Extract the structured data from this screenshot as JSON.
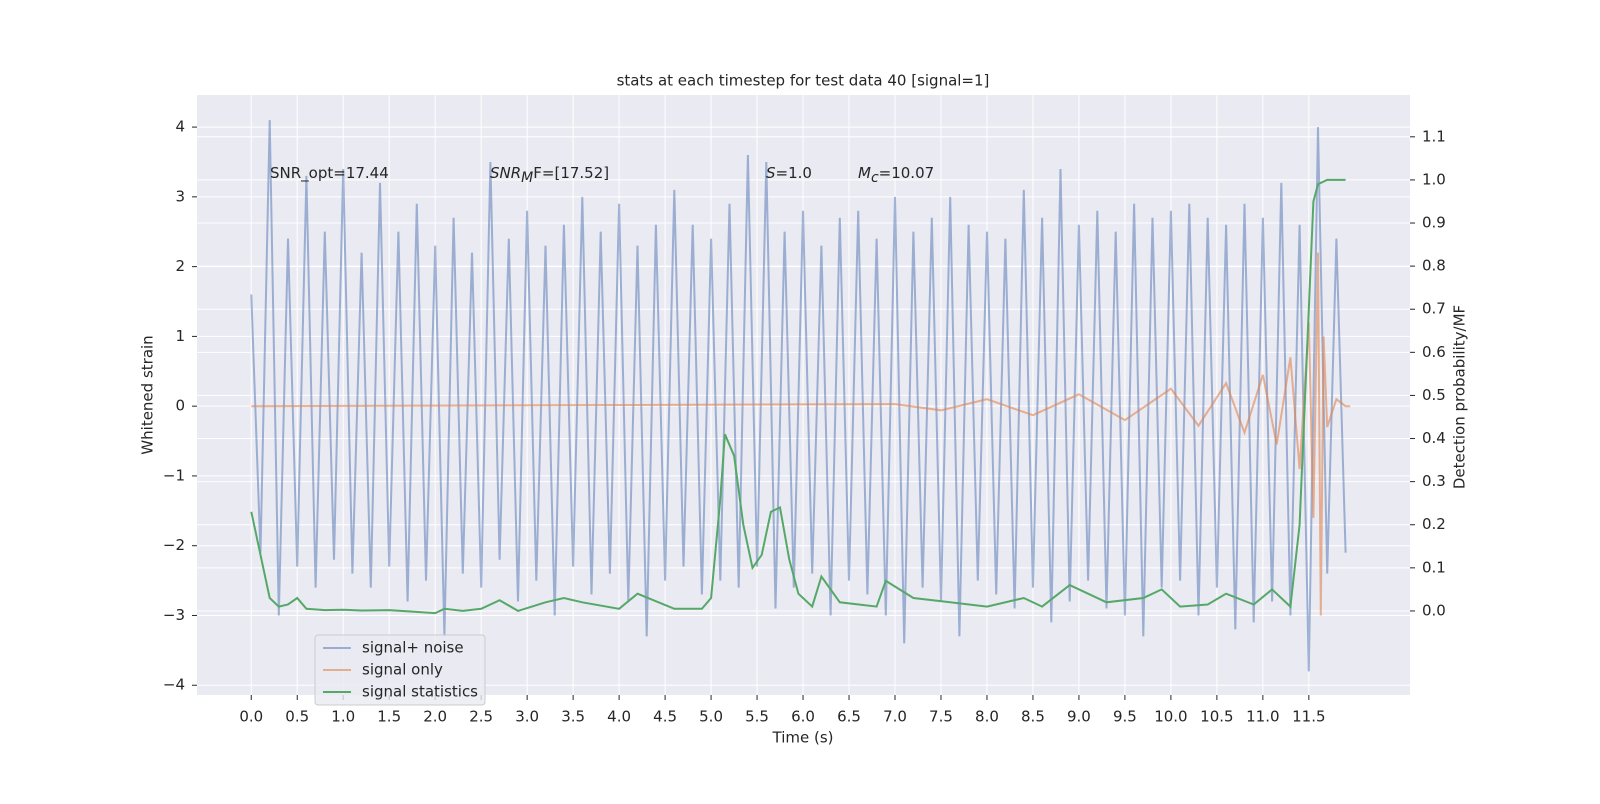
{
  "chart_data": {
    "type": "line",
    "title": "stats at each timestep for test data 40 [signal=1]",
    "x_label": "Time (s)",
    "y_label": "Whitened strain",
    "y2_label": "Detection probability/MF",
    "annotations": [
      {
        "parts": [
          "SNR_opt=17.44"
        ]
      },
      {
        "parts": [
          "SNR",
          "M",
          "F=[17.52]"
        ]
      },
      {
        "parts": [
          "S",
          "=1.0"
        ]
      },
      {
        "parts": [
          "M",
          "c",
          "=10.07"
        ]
      }
    ],
    "xlim": [
      -0.59,
      12.6
    ],
    "ylim": [
      -4.14,
      4.46
    ],
    "y2lim": [
      -0.195,
      1.197
    ],
    "grid": true,
    "legend": "lower left",
    "background": "#eaeaf2",
    "xticks": [
      {
        "value": 0,
        "label": "0.0"
      },
      {
        "value": 0.5,
        "label": "0.5"
      },
      {
        "value": 1,
        "label": "1.0"
      },
      {
        "value": 1.5,
        "label": "1.5"
      },
      {
        "value": 2,
        "label": "2.0"
      },
      {
        "value": 2.5,
        "label": "2.5"
      },
      {
        "value": 3,
        "label": "3.0"
      },
      {
        "value": 3.5,
        "label": "3.5"
      },
      {
        "value": 4,
        "label": "4.0"
      },
      {
        "value": 4.5,
        "label": "4.5"
      },
      {
        "value": 5,
        "label": "5.0"
      },
      {
        "value": 5.5,
        "label": "5.5"
      },
      {
        "value": 6,
        "label": "6.0"
      },
      {
        "value": 6.5,
        "label": "6.5"
      },
      {
        "value": 7,
        "label": "7.0"
      },
      {
        "value": 7.5,
        "label": "7.5"
      },
      {
        "value": 8,
        "label": "8.0"
      },
      {
        "value": 8.5,
        "label": "8.5"
      },
      {
        "value": 9,
        "label": "9.0"
      },
      {
        "value": 9.5,
        "label": "9.5"
      },
      {
        "value": 10,
        "label": "10.0"
      },
      {
        "value": 10.5,
        "label": "10.5"
      },
      {
        "value": 11,
        "label": "11.0"
      },
      {
        "value": 11.5,
        "label": "11.5"
      }
    ],
    "yticks": [
      {
        "value": -4,
        "label": "−4"
      },
      {
        "value": -3,
        "label": "−3"
      },
      {
        "value": -2,
        "label": "−2"
      },
      {
        "value": -1,
        "label": "−1"
      },
      0,
      1,
      2,
      3,
      4
    ],
    "y2ticks": [
      {
        "value": 0,
        "label": "0.0"
      },
      {
        "value": 0.1,
        "label": "0.1"
      },
      {
        "value": 0.2,
        "label": "0.2"
      },
      {
        "value": 0.3,
        "label": "0.3"
      },
      {
        "value": 0.4,
        "label": "0.4"
      },
      {
        "value": 0.5,
        "label": "0.5"
      },
      {
        "value": 0.6,
        "label": "0.6"
      },
      {
        "value": 0.7,
        "label": "0.7"
      },
      {
        "value": 0.8,
        "label": "0.8"
      },
      {
        "value": 0.9,
        "label": "0.9"
      },
      {
        "value": 1,
        "label": "1.0"
      },
      {
        "value": 1.1,
        "label": "1.1"
      }
    ],
    "series": [
      {
        "name": "signal+ noise",
        "color": "#4c72b0",
        "alpha": 0.5,
        "x": [
          0.0,
          0.1,
          0.2,
          0.3,
          0.4,
          0.5,
          0.6,
          0.7,
          0.8,
          0.9,
          1.0,
          1.1,
          1.2,
          1.3,
          1.4,
          1.5,
          1.6,
          1.7,
          1.8,
          1.9,
          2.0,
          2.1,
          2.2,
          2.3,
          2.4,
          2.5,
          2.6,
          2.7,
          2.8,
          2.9,
          3.0,
          3.1,
          3.2,
          3.3,
          3.4,
          3.5,
          3.6,
          3.7,
          3.8,
          3.9,
          4.0,
          4.1,
          4.2,
          4.3,
          4.4,
          4.5,
          4.6,
          4.7,
          4.8,
          4.9,
          5.0,
          5.1,
          5.2,
          5.3,
          5.4,
          5.5,
          5.6,
          5.7,
          5.8,
          5.9,
          6.0,
          6.1,
          6.2,
          6.3,
          6.4,
          6.5,
          6.6,
          6.7,
          6.8,
          6.9,
          7.0,
          7.1,
          7.2,
          7.3,
          7.4,
          7.5,
          7.6,
          7.7,
          7.8,
          7.9,
          8.0,
          8.1,
          8.2,
          8.3,
          8.4,
          8.5,
          8.6,
          8.7,
          8.8,
          8.9,
          9.0,
          9.1,
          9.2,
          9.3,
          9.4,
          9.5,
          9.6,
          9.7,
          9.8,
          9.9,
          10.0,
          10.1,
          10.2,
          10.3,
          10.4,
          10.5,
          10.6,
          10.7,
          10.8,
          10.9,
          11.0,
          11.1,
          11.2,
          11.3,
          11.4,
          11.5,
          11.6,
          11.7,
          11.8,
          11.9
        ],
        "values": [
          1.6,
          -2.1,
          4.1,
          -3.0,
          2.4,
          -2.3,
          3.3,
          -2.6,
          2.5,
          -2.2,
          3.4,
          -2.4,
          2.2,
          -2.6,
          3.2,
          -2.3,
          2.5,
          -2.8,
          2.9,
          -2.5,
          2.3,
          -3.3,
          2.7,
          -2.4,
          2.2,
          -2.6,
          3.5,
          -2.2,
          2.4,
          -2.8,
          2.8,
          -2.5,
          2.3,
          -3.0,
          2.6,
          -2.3,
          3.0,
          -2.7,
          2.5,
          -2.4,
          2.9,
          -2.8,
          2.3,
          -3.3,
          2.6,
          -2.5,
          3.1,
          -2.3,
          2.6,
          -2.7,
          2.4,
          -2.5,
          2.9,
          -2.6,
          3.6,
          -2.3,
          3.5,
          -2.9,
          2.5,
          -2.6,
          2.8,
          -2.4,
          2.3,
          -3.0,
          2.7,
          -2.5,
          2.8,
          -2.7,
          2.4,
          -3.0,
          3.0,
          -3.4,
          2.5,
          -2.6,
          2.7,
          -2.8,
          3.0,
          -3.3,
          2.6,
          -2.5,
          2.5,
          -2.7,
          2.4,
          -2.9,
          3.1,
          -2.6,
          2.7,
          -3.1,
          3.4,
          -2.8,
          2.6,
          -2.5,
          2.8,
          -2.9,
          2.5,
          -3.0,
          2.9,
          -3.3,
          2.7,
          -2.6,
          2.8,
          -2.5,
          2.9,
          -3.0,
          2.7,
          -2.6,
          2.6,
          -3.2,
          2.9,
          -3.1,
          2.7,
          -2.8,
          3.2,
          -3.0,
          2.6,
          -3.8,
          4.0,
          -2.4,
          2.4,
          -2.1
        ]
      },
      {
        "name": "signal only",
        "color": "#dd8452",
        "alpha": 0.6,
        "x": [
          0.0,
          7.0,
          7.5,
          8.0,
          8.5,
          9.0,
          9.5,
          10.0,
          10.3,
          10.6,
          10.8,
          11.0,
          11.15,
          11.3,
          11.4,
          11.5,
          11.55,
          11.6,
          11.63,
          11.66,
          11.7,
          11.8,
          11.9,
          11.95
        ],
        "values": [
          0,
          0.03,
          -0.06,
          0.1,
          -0.13,
          0.17,
          -0.2,
          0.25,
          -0.28,
          0.33,
          -0.38,
          0.45,
          -0.55,
          0.7,
          -0.9,
          1.2,
          -1.6,
          2.2,
          -3.0,
          1.0,
          -0.3,
          0.1,
          0,
          0
        ]
      },
      {
        "name": "signal statistics",
        "color": "#55a868",
        "alpha": 1,
        "axis": "y2",
        "x": [
          0.0,
          0.1,
          0.2,
          0.3,
          0.4,
          0.5,
          0.6,
          0.8,
          1.0,
          1.2,
          1.5,
          2.0,
          2.1,
          2.3,
          2.5,
          2.7,
          2.9,
          3.2,
          3.4,
          3.6,
          4.0,
          4.2,
          4.6,
          4.9,
          5.0,
          5.1,
          5.15,
          5.25,
          5.35,
          5.45,
          5.55,
          5.65,
          5.75,
          5.85,
          5.95,
          6.1,
          6.2,
          6.4,
          6.8,
          6.9,
          7.2,
          7.6,
          8.0,
          8.4,
          8.6,
          8.9,
          9.3,
          9.7,
          9.9,
          10.1,
          10.4,
          10.6,
          10.9,
          11.1,
          11.3,
          11.4,
          11.5,
          11.55,
          11.6,
          11.7,
          11.9
        ],
        "values": [
          0.23,
          0.13,
          0.03,
          0.01,
          0.015,
          0.03,
          0.005,
          0.002,
          0.003,
          0.001,
          0.002,
          -0.005,
          0.005,
          0,
          0.005,
          0.025,
          0,
          0.02,
          0.03,
          0.02,
          0.005,
          0.04,
          0.005,
          0.005,
          0.03,
          0.26,
          0.41,
          0.36,
          0.2,
          0.1,
          0.13,
          0.23,
          0.24,
          0.12,
          0.04,
          0.01,
          0.08,
          0.02,
          0.01,
          0.07,
          0.03,
          0.02,
          0.01,
          0.03,
          0.01,
          0.06,
          0.02,
          0.03,
          0.05,
          0.01,
          0.015,
          0.04,
          0.015,
          0.05,
          0.01,
          0.2,
          0.7,
          0.95,
          0.99,
          1,
          1
        ]
      }
    ]
  }
}
